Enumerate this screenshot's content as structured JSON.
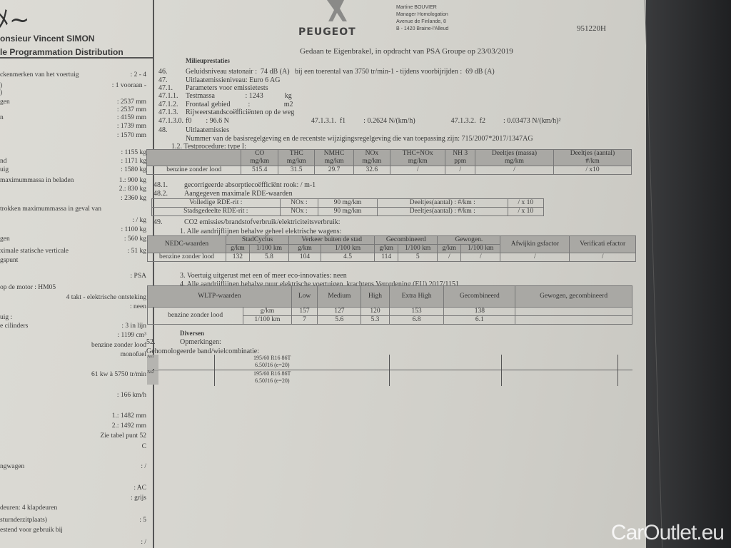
{
  "header": {
    "person": "onsieur Vincent SIMON",
    "department": "le Programmation Distribution",
    "brand": "PEUGEOT",
    "signatory": [
      "Martine BOUVIER",
      "Manager Homologation",
      "Avenue de Finlande, 8",
      "B - 1420 Braine-l'Alleud"
    ],
    "doc_number": "951220H",
    "done_at": "Gedaan te Eigenbrakel, in opdracht van PSA Groupe op 23/03/2019"
  },
  "left": [
    [
      "ckenmerken van het voertuig",
      ": 2 - 4"
    ],
    [
      ")",
      ": 1 vooraan -"
    ],
    [
      ")",
      ""
    ],
    [
      "gen",
      ": 2537 mm"
    ],
    [
      "",
      ": 2537 mm"
    ],
    [
      "n",
      ": 4159 mm"
    ],
    [
      "",
      ": 1739 mm"
    ],
    [
      "",
      ": 1570 mm"
    ],
    [
      "",
      ": 1155 kg"
    ],
    [
      "nd",
      ": 1171 kg"
    ],
    [
      "uig",
      ": 1580 kg"
    ],
    [
      "maximummassa in beladen",
      "1.: 900 kg"
    ],
    [
      "",
      "2.: 830 kg"
    ],
    [
      "",
      ": 2360 kg"
    ],
    [
      "trokken maximummassa in geval van",
      ""
    ],
    [
      "",
      ": / kg"
    ],
    [
      "",
      ": 1100 kg"
    ],
    [
      "gen",
      ": 560 kg"
    ],
    [
      "ximale statische verticale",
      ": 51 kg"
    ],
    [
      "gspunt",
      ""
    ],
    [
      "",
      ": PSA"
    ],
    [
      "op de motor : HM05",
      ""
    ],
    [
      "",
      "4 takt - elektrische ontsteking"
    ],
    [
      "",
      ": neen"
    ],
    [
      "uig :",
      ""
    ],
    [
      "e cilinders",
      ": 3 in lijn"
    ],
    [
      "",
      ": 1199 cm³"
    ],
    [
      "",
      "benzine zonder lood"
    ],
    [
      "",
      "monofuel"
    ],
    [
      "",
      "61 kw  à  5750 tr/min"
    ],
    [
      "",
      ": 166 km/h"
    ],
    [
      "",
      "1.: 1482 mm"
    ],
    [
      "",
      "2.: 1492 mm"
    ],
    [
      "",
      "Zie tabel punt 52"
    ],
    [
      "",
      "C"
    ],
    [
      "ngwagen",
      ": /"
    ],
    [
      "",
      ": AC"
    ],
    [
      "",
      ": grijs"
    ],
    [
      "deuren: 4 klapdeuren",
      ""
    ],
    [
      "sturnderzitplaats)",
      ": 5"
    ],
    [
      "estend voor gebruik bij",
      ""
    ],
    [
      "",
      ": /"
    ]
  ],
  "main": {
    "section_title": "Milieuprestaties",
    "lines": [
      [
        "46.",
        "Geluidsniveau statonair :  74 dB (A)   bij een toerental van 3750 tr/min-1 - tijdens voorbijrijden :  69 dB (A)"
      ],
      [
        "47.",
        "Uitlaatemissieniveau: Euro 6 AG"
      ],
      [
        "47.1.",
        "Parameters voor emissietests"
      ],
      [
        "47.1.1.",
        "Testmassa                 : 1243            kg"
      ],
      [
        "47.1.2.",
        "Frontaal gebied          :                   m2"
      ],
      [
        "47.1.3.",
        "Rijweerstandscoëfficiënten op de weg"
      ],
      [
        "47.1.3.0.",
        "f0        : 96.6 N                                              47.1.3.1.  f1          : 0.2624 N/(km/h)                    47.1.3.2.  f2          : 0.03473 N/(km/h)²"
      ],
      [
        "48.",
        "Uitlaatemissies"
      ],
      [
        "",
        "Nummer van de basisregelgeving en de recentste wijzigingsregelgeving die van toepassing zijn: 715/2007*2017/1347AG"
      ]
    ],
    "testprocedure": "1.2. Testprocedure: type I:",
    "emissions_table": {
      "headers": [
        "",
        "CO\nmg/km",
        "THC\nmg/km",
        "NMHC\nmg/km",
        "NOx\nmg/km",
        "THC+NOx\nmg/km",
        "NH 3\nppm",
        "Deeltjes (massa)\nmg/km",
        "Deeltjes (aantal)\n#/km"
      ],
      "row": [
        "benzine zonder lood",
        "515.4",
        "31.5",
        "29.7",
        "32.6",
        "/",
        "/",
        "/",
        "/ x10"
      ]
    },
    "l481": [
      "48.1.",
      "gecorrigeerde absorptiecoëfficiënt rook: / m-1"
    ],
    "l482": [
      "48.2.",
      "Aangegeven maximale RDE-waarden"
    ],
    "rde": [
      [
        "Volledige RDE-rit :",
        "NOx :",
        "90 mg/km",
        "Deeltjes(aantal) : #/km :",
        "/ x 10"
      ],
      [
        "Stadsgedeelte RDE-rit :",
        "NOx :",
        "90 mg/km",
        "Deeltjes(aantal) : #/km :",
        "/ x 10"
      ]
    ],
    "l49": [
      "49.",
      "CO2 emissies/brandstofverbruik/elektriciteitsverbruik:"
    ],
    "l49_1": "1. Alle aandrijflijnen behalve geheel elektrische wagens:",
    "nedc": {
      "title": "NEDC-waarden",
      "groups": [
        "StadCyclus",
        "Verkeer buiten de stad",
        "Gecombineerd",
        "Gewogen.",
        "Afwijkin gsfactor",
        "Verificati efactor"
      ],
      "units": [
        "g/km",
        "1/100 km",
        "g/km",
        "1/100 km",
        "g/km",
        "1/100 km",
        "g/km",
        "1/100 km"
      ],
      "row": [
        "benzine zonder lood",
        "132",
        "5.8",
        "104",
        "4.5",
        "114",
        "5",
        "/",
        "/",
        "/",
        "/"
      ]
    },
    "l49_3": "3. Voertuig uitgerust met een of meer eco-innovaties: neen",
    "l49_4": "4. Alle aandrijflijnen behalve puur elektrische voertuigen, krachtens Verordening (EU) 2017/1151",
    "wltp": {
      "title": "WLTP-waarden",
      "headers": [
        "Low",
        "Medium",
        "High",
        "Extra High",
        "Gecombineerd",
        "Gewogen, gecombineerd"
      ],
      "fuel": "benzine zonder lood",
      "rows": [
        [
          "g/km",
          "157",
          "127",
          "120",
          "153",
          "138",
          ""
        ],
        [
          "1/100 km",
          "7",
          "5.6",
          "5.3",
          "6.8",
          "6.1",
          ""
        ]
      ]
    },
    "diversen": "Diversen",
    "l52": [
      "52.",
      "Opmerkingen:"
    ],
    "tyres_title": "Gehomologeerde band/wielcombinatie:",
    "tyres": [
      {
        "axle": "As1",
        "tyre": "195/60 R16 86T",
        "rim": "6.50J16 (e=20)"
      },
      {
        "axle": "As2",
        "tyre": "195/60 R16 86T",
        "rim": "6.50J16 (e=20)"
      }
    ]
  },
  "watermark": "CarOutlet.eu"
}
